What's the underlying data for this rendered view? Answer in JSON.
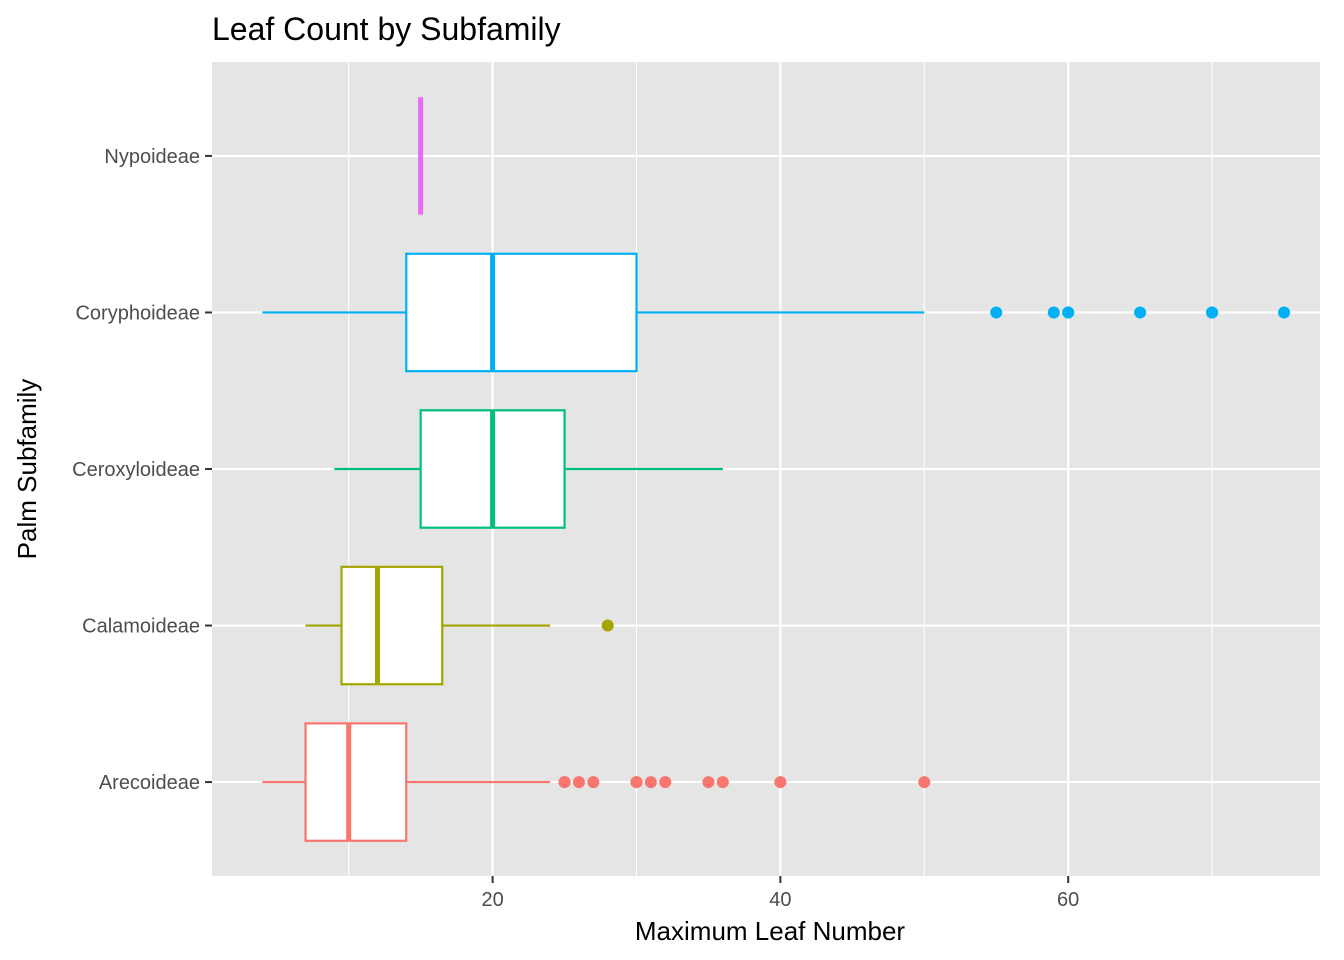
{
  "chart_data": {
    "type": "boxplot",
    "orientation": "horizontal",
    "title": "Leaf Count by Subfamily",
    "xlabel": "Maximum Leaf Number",
    "ylabel": "Palm Subfamily",
    "xlim": [
      0.5,
      77.5
    ],
    "xticks": [
      20,
      40,
      60
    ],
    "xtick_labels": [
      "20",
      "40",
      "60"
    ],
    "grid": true,
    "legend": "none",
    "categories": [
      "Arecoideae",
      "Calamoideae",
      "Ceroxyloideae",
      "Coryphoideae",
      "Nypoideae"
    ],
    "series": [
      {
        "category": "Arecoideae",
        "color": "#F8766D",
        "whisker_low": 4,
        "q1": 7,
        "median": 10,
        "q3": 14,
        "whisker_high": 24,
        "outliers": [
          25,
          25,
          26,
          27,
          30,
          30,
          31,
          32,
          35,
          36,
          40,
          50
        ]
      },
      {
        "category": "Calamoideae",
        "color": "#A3A500",
        "whisker_low": 7,
        "q1": 9.5,
        "median": 12,
        "q3": 16.5,
        "whisker_high": 24,
        "outliers": [
          28
        ]
      },
      {
        "category": "Ceroxyloideae",
        "color": "#00BF7D",
        "whisker_low": 9,
        "q1": 15,
        "median": 20,
        "q3": 25,
        "whisker_high": 36,
        "outliers": []
      },
      {
        "category": "Coryphoideae",
        "color": "#00B0F6",
        "whisker_low": 4,
        "q1": 14,
        "median": 20,
        "q3": 30,
        "whisker_high": 50,
        "outliers": [
          55,
          59,
          60,
          60,
          65,
          70,
          70,
          75
        ]
      },
      {
        "category": "Nypoideae",
        "color": "#E76BF3",
        "whisker_low": 15,
        "q1": 15,
        "median": 15,
        "q3": 15,
        "whisker_high": 15,
        "outliers": []
      }
    ],
    "colors": {
      "panel_background": "#E5E5E5",
      "grid": "#FFFFFF",
      "box_fill": "#FFFFFF"
    }
  }
}
